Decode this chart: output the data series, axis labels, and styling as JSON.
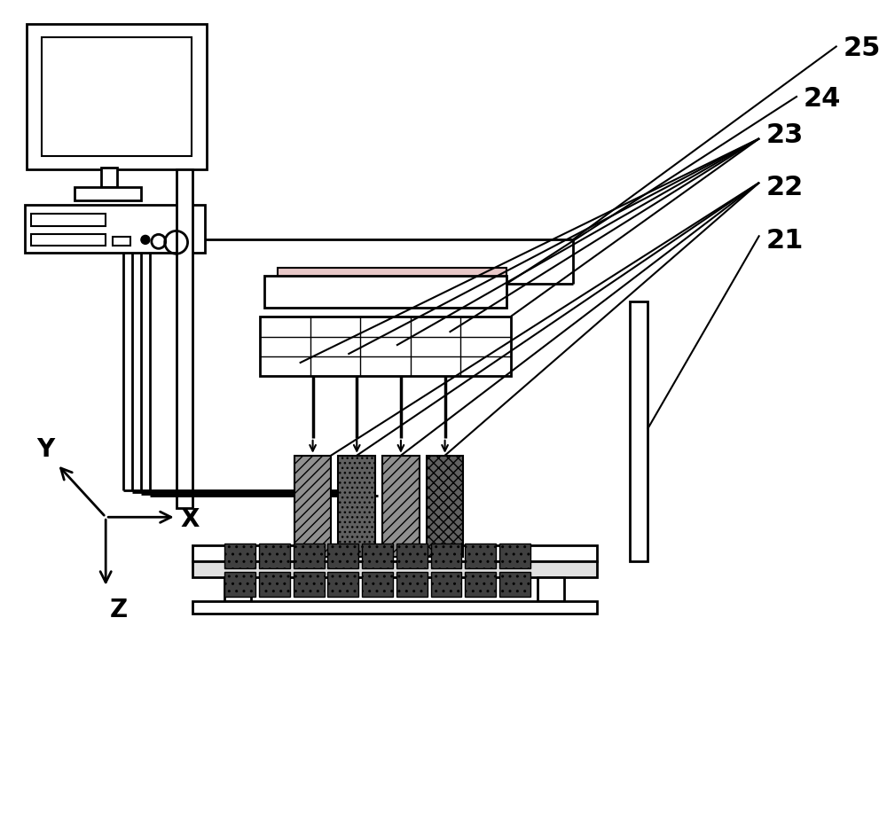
{
  "bg_color": "#ffffff",
  "line_color": "#000000",
  "label_25": "25",
  "label_24": "24",
  "label_23": "23",
  "label_22": "22",
  "label_21": "21",
  "label_fontsize": 22,
  "axis_label_fontsize": 20,
  "figsize": [
    10.0,
    9.45
  ]
}
